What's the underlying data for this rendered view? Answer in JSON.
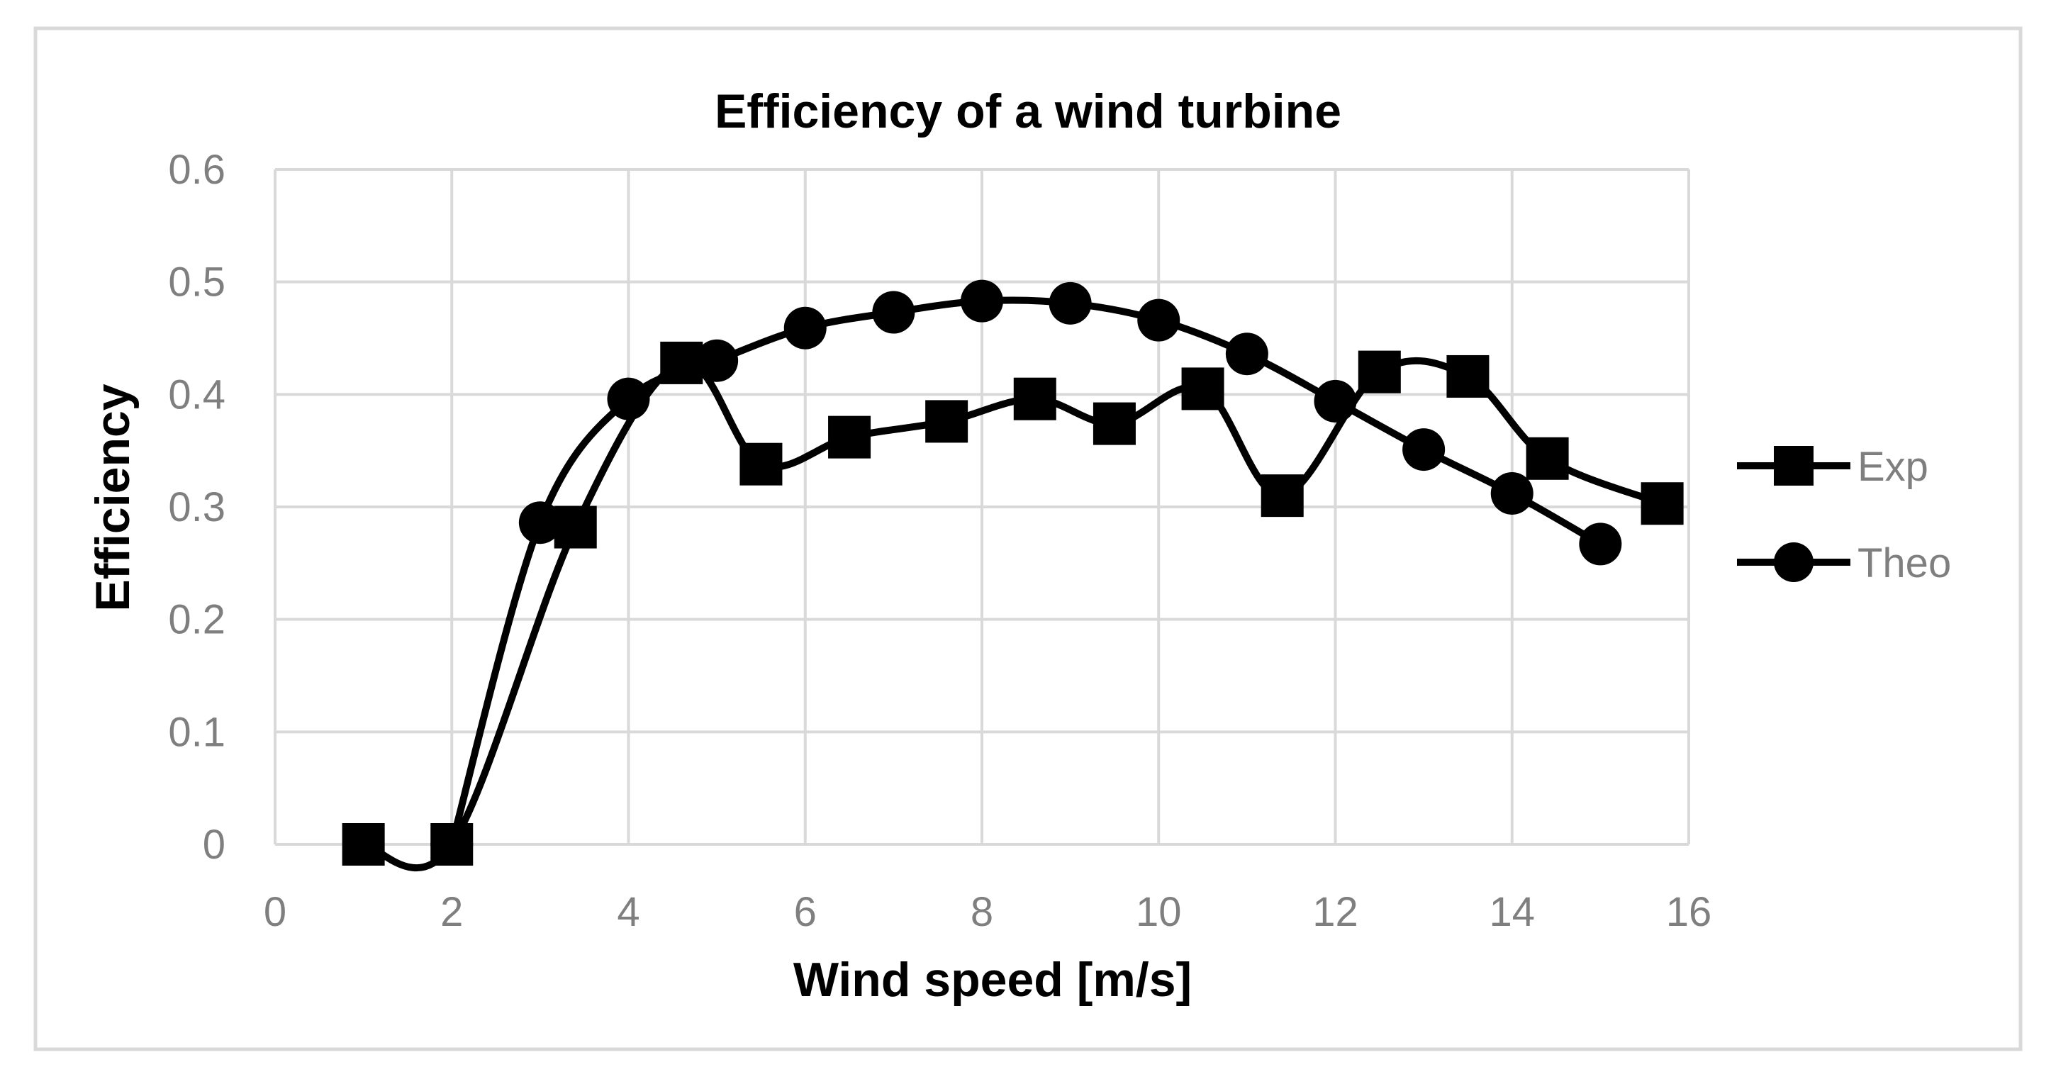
{
  "chart_data": {
    "type": "line",
    "title": "Efficiency of a wind turbine",
    "xlabel": "Wind speed [m/s]",
    "ylabel": "Efficiency",
    "xlim": [
      0,
      16
    ],
    "ylim": [
      0,
      0.6
    ],
    "x_ticks": [
      0,
      2,
      4,
      6,
      8,
      10,
      12,
      14,
      16
    ],
    "y_ticks": [
      0,
      0.1,
      0.2,
      0.3,
      0.4,
      0.5,
      0.6
    ],
    "x_tick_labels": [
      "0",
      "2",
      "4",
      "6",
      "8",
      "10",
      "12",
      "14",
      "16"
    ],
    "y_tick_labels": [
      "0",
      "0.1",
      "0.2",
      "0.3",
      "0.4",
      "0.5",
      "0.6"
    ],
    "grid": true,
    "legend_position": "right",
    "series": [
      {
        "name": "Exp",
        "marker": "square",
        "color": "#000000",
        "x": [
          1,
          2,
          3.4,
          4.6,
          5.5,
          6.5,
          7.6,
          8.6,
          9.5,
          10.5,
          11.4,
          12.5,
          13.5,
          14.4,
          15.7
        ],
        "y": [
          0,
          0,
          0.282,
          0.428,
          0.338,
          0.362,
          0.376,
          0.396,
          0.374,
          0.405,
          0.31,
          0.42,
          0.416,
          0.343,
          0.303
        ]
      },
      {
        "name": "Theo",
        "marker": "circle",
        "color": "#000000",
        "x": [
          2,
          3,
          4,
          5,
          6,
          7,
          8,
          9,
          10,
          11,
          12,
          13,
          14,
          15
        ],
        "y": [
          0,
          0.286,
          0.396,
          0.43,
          0.459,
          0.473,
          0.483,
          0.481,
          0.466,
          0.436,
          0.394,
          0.351,
          0.312,
          0.267
        ]
      }
    ]
  },
  "colors": {
    "grid": "#d9d9d9",
    "frame": "#d9d9d9",
    "tick_text": "#7f7f7f",
    "series_line": "#000000"
  }
}
